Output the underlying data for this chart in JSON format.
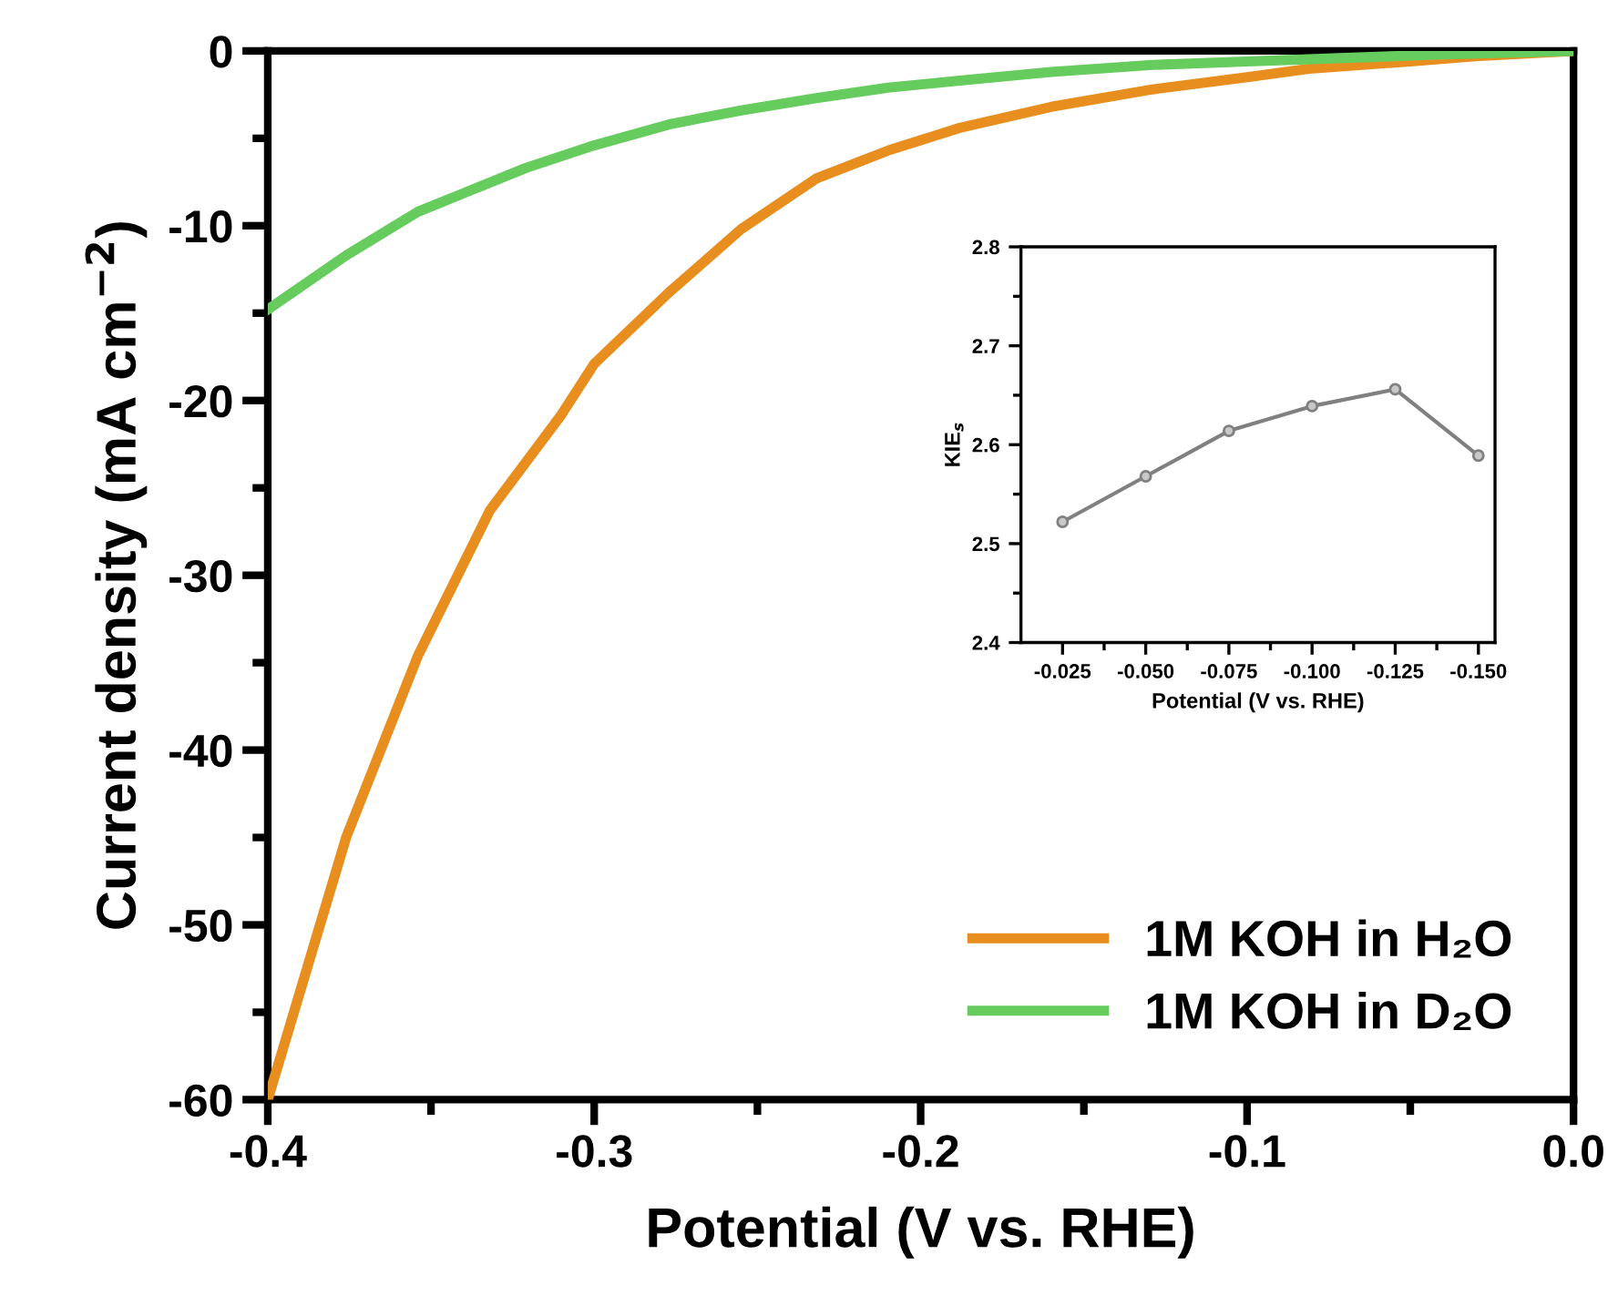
{
  "chart_data": [
    {
      "type": "line",
      "xlabel": "Potential (V vs. RHE)",
      "ylabel": "Current density (mA cm$^{−2}$)",
      "xlim": [
        -0.4,
        0.0
      ],
      "ylim": [
        -60,
        0
      ],
      "xticks": [
        -0.4,
        {
          "value": -0.35,
          "label": null
        },
        -0.3,
        {
          "value": -0.25,
          "label": null
        },
        -0.2,
        {
          "value": -0.15,
          "label": null
        },
        -0.1,
        {
          "value": -0.05,
          "label": null
        },
        {
          "value": 0.0,
          "label": "0.0"
        }
      ],
      "yticks": [
        -60,
        {
          "value": -55,
          "label": null
        },
        -50,
        {
          "value": -45,
          "label": null
        },
        -40,
        {
          "value": -35,
          "label": null
        },
        -30,
        {
          "value": -25,
          "label": null
        },
        -20,
        {
          "value": -15,
          "label": null
        },
        -10,
        {
          "value": -5,
          "label": null
        },
        0
      ],
      "legend": "bottom right",
      "grid": false,
      "line_style": "solid",
      "marker": "none",
      "series": [
        {
          "name": "1M KOH in H₂O",
          "color": "#e88e1e",
          "x": [
            -0.4,
            -0.376,
            -0.354,
            -0.332,
            -0.31,
            -0.3,
            -0.277,
            -0.255,
            -0.232,
            -0.21,
            -0.188,
            -0.16,
            -0.129,
            -0.1,
            -0.08,
            -0.05,
            -0.03,
            0.0
          ],
          "values": [
            -60,
            -45,
            -34.6,
            -26.3,
            -20.8,
            -17.9,
            -13.8,
            -10.2,
            -7.3,
            -5.7,
            -4.4,
            -3.2,
            -2.2,
            -1.5,
            -1.0,
            -0.6,
            -0.3,
            0
          ]
        },
        {
          "name": "1M KOH in D₂O",
          "color": "#66cc5e",
          "x": [
            -0.4,
            -0.376,
            -0.354,
            -0.321,
            -0.3,
            -0.277,
            -0.255,
            -0.232,
            -0.21,
            -0.188,
            -0.16,
            -0.129,
            -0.1,
            -0.07,
            -0.04,
            0.0
          ],
          "values": [
            -14.8,
            -11.7,
            -9.2,
            -6.7,
            -5.4,
            -4.2,
            -3.4,
            -2.7,
            -2.1,
            -1.7,
            -1.2,
            -0.8,
            -0.6,
            -0.4,
            -0.2,
            0
          ]
        }
      ]
    },
    {
      "type": "line",
      "xlabel": "Potential (V vs. RHE)",
      "ylabel": "KIE$_{s}$",
      "xlim": [
        -0.0125,
        -0.155
      ],
      "ylim": [
        2.4,
        2.8
      ],
      "xticks": [
        -0.025,
        {
          "value": -0.0375,
          "label": null
        },
        {
          "value": -0.05,
          "label": "-0.050"
        },
        {
          "value": -0.0625,
          "label": null
        },
        -0.075,
        {
          "value": -0.0875,
          "label": null
        },
        {
          "value": -0.1,
          "label": "-0.100"
        },
        {
          "value": -0.1125,
          "label": null
        },
        -0.125,
        {
          "value": -0.1375,
          "label": null
        },
        {
          "value": -0.15,
          "label": "-0.150"
        }
      ],
      "yticks": [
        2.4,
        {
          "value": 2.45,
          "label": null
        },
        2.5,
        {
          "value": 2.55,
          "label": null
        },
        2.6,
        {
          "value": 2.65,
          "label": null
        },
        2.7,
        {
          "value": 2.75,
          "label": null
        },
        2.8
      ],
      "grid": false,
      "marker": "circle",
      "line_style": "solid",
      "series": [
        {
          "color": "#808080",
          "x": [
            -0.025,
            -0.05,
            -0.075,
            -0.1,
            -0.125,
            -0.15
          ],
          "values": [
            2.522,
            2.568,
            2.614,
            2.639,
            2.656,
            2.589
          ]
        }
      ]
    }
  ]
}
